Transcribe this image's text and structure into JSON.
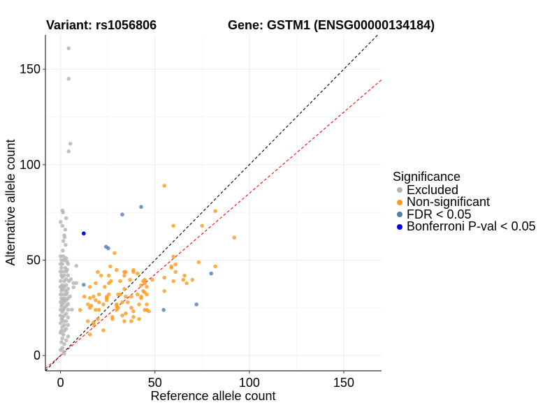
{
  "chart_data": {
    "type": "scatter",
    "title_left": "Variant: rs1056806",
    "title_right": "Gene: GSTM1 (ENSG00000134184)",
    "xlabel": "Reference allele count",
    "ylabel": "Alternative allele count",
    "xlim": [
      -8,
      170
    ],
    "ylim": [
      -8,
      168
    ],
    "xticks": [
      0,
      50,
      100,
      150
    ],
    "yticks": [
      0,
      50,
      100,
      150
    ],
    "grid": true,
    "reference_lines": [
      {
        "name": "identity",
        "slope": 1.0,
        "color": "#000000",
        "style": "dashed"
      },
      {
        "name": "expected-ratio",
        "slope": 0.85,
        "color": "#ff0000",
        "style": "dashed"
      }
    ],
    "legend": {
      "title": "Significance",
      "placement": "right",
      "entries": [
        {
          "label": "Excluded",
          "color": "#b3b3b3"
        },
        {
          "label": "Non-significant",
          "color": "#ff9a1a"
        },
        {
          "label": "FDR < 0.05",
          "color": "#4f7db3"
        },
        {
          "label": "Bonferroni P-val < 0.05",
          "color": "#0000ff"
        }
      ]
    },
    "series": [
      {
        "name": "Excluded",
        "color": "#b3b3b3",
        "points": [
          [
            4.3,
            161
          ],
          [
            4.3,
            145
          ],
          [
            5.2,
            111
          ],
          [
            4.3,
            107
          ],
          [
            1,
            76
          ],
          [
            1.3,
            75
          ],
          [
            3,
            72
          ],
          [
            0,
            70
          ],
          [
            1,
            68
          ],
          [
            2.5,
            66
          ],
          [
            2,
            63
          ],
          [
            2.2,
            62
          ],
          [
            1.5,
            60
          ],
          [
            2.7,
            58
          ],
          [
            1.2,
            55
          ],
          [
            0,
            52
          ],
          [
            1.5,
            52
          ],
          [
            3,
            51
          ],
          [
            0.5,
            50
          ],
          [
            2,
            50
          ],
          [
            3.5,
            49
          ],
          [
            0,
            48
          ],
          [
            1,
            48
          ],
          [
            4,
            48
          ],
          [
            8.4,
            47
          ],
          [
            0.5,
            46
          ],
          [
            2.5,
            46
          ],
          [
            3.5,
            45
          ],
          [
            0,
            44
          ],
          [
            1.5,
            44
          ],
          [
            3,
            44
          ],
          [
            0.5,
            42
          ],
          [
            2,
            42
          ],
          [
            4,
            42
          ],
          [
            1,
            41
          ],
          [
            3,
            40
          ],
          [
            5.5,
            40
          ],
          [
            0,
            39
          ],
          [
            2,
            39
          ],
          [
            4.5,
            39
          ],
          [
            6.9,
            38
          ],
          [
            8.4,
            38
          ],
          [
            1,
            37
          ],
          [
            3,
            37
          ],
          [
            0,
            36
          ],
          [
            2,
            36
          ],
          [
            6.9,
            35.8
          ],
          [
            1,
            35
          ],
          [
            4,
            35
          ],
          [
            0.5,
            34
          ],
          [
            2.5,
            34
          ],
          [
            3.5,
            33
          ],
          [
            0,
            32
          ],
          [
            1.5,
            32
          ],
          [
            3,
            32
          ],
          [
            5,
            31
          ],
          [
            0.5,
            30
          ],
          [
            2,
            30
          ],
          [
            4,
            30
          ],
          [
            1,
            29
          ],
          [
            3,
            29
          ],
          [
            0,
            28
          ],
          [
            2,
            28
          ],
          [
            4,
            27
          ],
          [
            1,
            27
          ],
          [
            0.5,
            26
          ],
          [
            3,
            26
          ],
          [
            2,
            25
          ],
          [
            0,
            24
          ],
          [
            1.5,
            24
          ],
          [
            4,
            24
          ],
          [
            6,
            24
          ],
          [
            1,
            23
          ],
          [
            3,
            22
          ],
          [
            0,
            21
          ],
          [
            2,
            21
          ],
          [
            4,
            20
          ],
          [
            1,
            20
          ],
          [
            0.5,
            19
          ],
          [
            3,
            18
          ],
          [
            1.5,
            18
          ],
          [
            0,
            17
          ],
          [
            2,
            16
          ],
          [
            4,
            16
          ],
          [
            1,
            15
          ],
          [
            3,
            14
          ],
          [
            0.5,
            13
          ],
          [
            2,
            13
          ],
          [
            0,
            12
          ],
          [
            1.5,
            11
          ],
          [
            4,
            10
          ],
          [
            1,
            9
          ],
          [
            3,
            8
          ],
          [
            0.5,
            7
          ],
          [
            2,
            6
          ],
          [
            1,
            4
          ],
          [
            0,
            3
          ],
          [
            1.5,
            2
          ],
          [
            2,
            1
          ]
        ]
      },
      {
        "name": "Non-significant",
        "color": "#ff9a1a",
        "points": [
          [
            55,
            89
          ],
          [
            82,
            75.7
          ],
          [
            75,
            68
          ],
          [
            59.8,
            68
          ],
          [
            92,
            61.8
          ],
          [
            28.6,
            53.7
          ],
          [
            59.8,
            51.8
          ],
          [
            73.2,
            48.9
          ],
          [
            82,
            46.7
          ],
          [
            60.9,
            47.8
          ],
          [
            58.7,
            46.7
          ],
          [
            58.7,
            46
          ],
          [
            26.4,
            46.7
          ],
          [
            29.7,
            44.8
          ],
          [
            33.8,
            43.8
          ],
          [
            34.5,
            43.8
          ],
          [
            38.6,
            44.8
          ],
          [
            38.6,
            43.8
          ],
          [
            19.7,
            43.8
          ],
          [
            60.9,
            43.8
          ],
          [
            40.8,
            43
          ],
          [
            21.5,
            41.9
          ],
          [
            25.6,
            41.9
          ],
          [
            33.8,
            41.9
          ],
          [
            55,
            40.8
          ],
          [
            65.7,
            41.9
          ],
          [
            36.8,
            39.7
          ],
          [
            44.6,
            39.7
          ],
          [
            48.6,
            39.7
          ],
          [
            65,
            39.7
          ],
          [
            69.8,
            39.7
          ],
          [
            59.8,
            39
          ],
          [
            66.8,
            37.9
          ],
          [
            26.7,
            39
          ],
          [
            31.6,
            39
          ],
          [
            43.8,
            39
          ],
          [
            44.6,
            37.9
          ],
          [
            42.7,
            36.8
          ],
          [
            18.6,
            37.9
          ],
          [
            25.6,
            37.9
          ],
          [
            23.4,
            36
          ],
          [
            15.6,
            36
          ],
          [
            45.7,
            36
          ],
          [
            33.8,
            34.9
          ],
          [
            43.8,
            33.8
          ],
          [
            44.6,
            33.1
          ],
          [
            45.7,
            32
          ],
          [
            55,
            33.8
          ],
          [
            20.4,
            32
          ],
          [
            25.6,
            32
          ],
          [
            24.5,
            30.9
          ],
          [
            24.5,
            30.1
          ],
          [
            24.5,
            29
          ],
          [
            30.5,
            32
          ],
          [
            31.6,
            32
          ],
          [
            34.5,
            30.9
          ],
          [
            37.5,
            30.9
          ],
          [
            40.8,
            32
          ],
          [
            42.7,
            30.9
          ],
          [
            42.7,
            30.1
          ],
          [
            12.6,
            30.9
          ],
          [
            17.5,
            30.9
          ],
          [
            15.6,
            30.1
          ],
          [
            18.6,
            29
          ],
          [
            20.4,
            27.9
          ],
          [
            22.7,
            26.8
          ],
          [
            14.5,
            26.8
          ],
          [
            16.3,
            26.1
          ],
          [
            15.6,
            25
          ],
          [
            29.7,
            26.8
          ],
          [
            29.7,
            26.1
          ],
          [
            30.5,
            25
          ],
          [
            32.7,
            27.9
          ],
          [
            35.6,
            27.9
          ],
          [
            41.6,
            26.8
          ],
          [
            45.7,
            26.8
          ],
          [
            37.5,
            25
          ],
          [
            18.6,
            23.9
          ],
          [
            20.4,
            23.9
          ],
          [
            10.4,
            23.9
          ],
          [
            29.7,
            23.9
          ],
          [
            34.5,
            22.1
          ],
          [
            38.6,
            23.2
          ],
          [
            44.6,
            23.9
          ],
          [
            45.7,
            23.9
          ],
          [
            46.8,
            23.2
          ],
          [
            32.7,
            21
          ],
          [
            27.5,
            20.2
          ],
          [
            27.5,
            19.1
          ],
          [
            38.6,
            20.2
          ],
          [
            41.6,
            19.1
          ],
          [
            19.7,
            19.1
          ],
          [
            14.5,
            18
          ],
          [
            33.8,
            18
          ],
          [
            37.5,
            18
          ],
          [
            17.5,
            16.2
          ],
          [
            17.5,
            17.3
          ],
          [
            22.7,
            13.2
          ],
          [
            15.6,
            11
          ]
        ]
      },
      {
        "name": "FDR < 0.05",
        "color": "#4f7db3",
        "points": [
          [
            12.3,
            37.1
          ],
          [
            24.1,
            57
          ],
          [
            25.3,
            56.2
          ],
          [
            32.7,
            73.9
          ],
          [
            42.7,
            77.9
          ],
          [
            54.6,
            23.9
          ],
          [
            72,
            26.8
          ],
          [
            79.8,
            43
          ]
        ]
      },
      {
        "name": "Bonferroni P-val < 0.05",
        "color": "#0000ff",
        "points": [
          [
            12.3,
            64
          ]
        ]
      }
    ]
  }
}
